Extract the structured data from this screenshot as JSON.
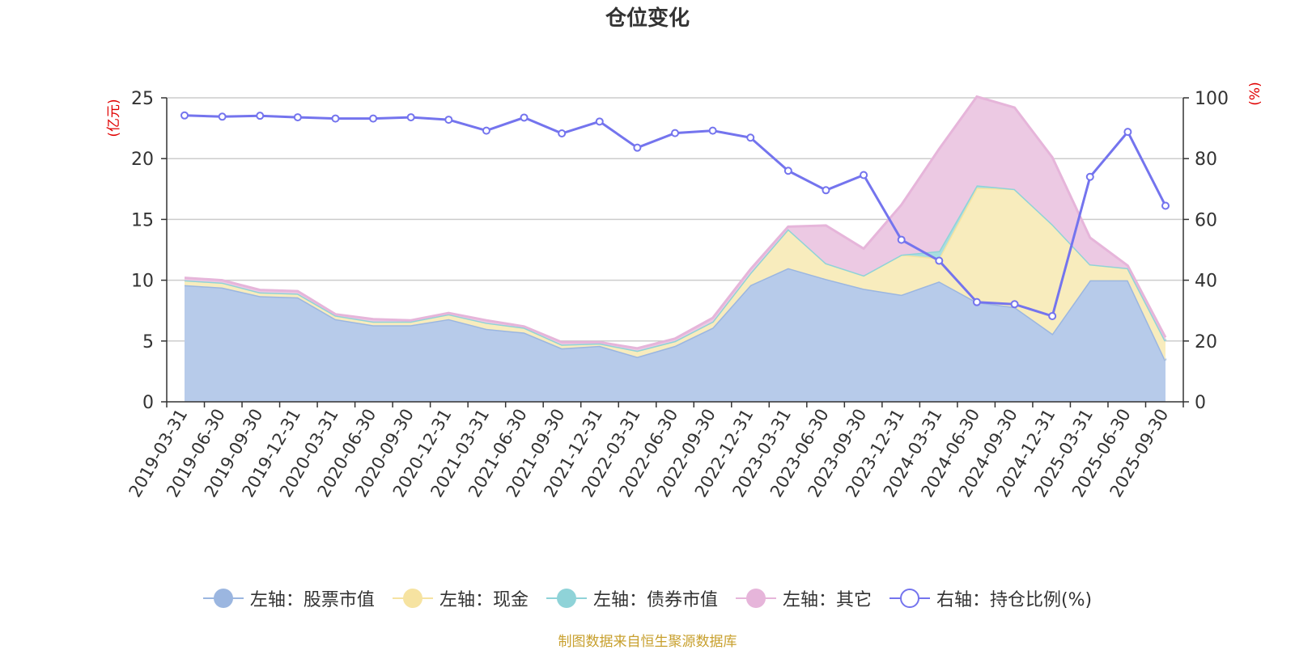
{
  "chart_data": {
    "type": "area",
    "title": "仓位变化",
    "left_axis_unit": "(亿元)",
    "right_axis_unit": "(%)",
    "categories": [
      "2019-03-31",
      "2019-06-30",
      "2019-09-30",
      "2019-12-31",
      "2020-03-31",
      "2020-06-30",
      "2020-09-30",
      "2020-12-31",
      "2021-03-31",
      "2021-06-30",
      "2021-09-30",
      "2021-12-31",
      "2022-03-31",
      "2022-06-30",
      "2022-09-30",
      "2022-12-31",
      "2023-03-31",
      "2023-06-30",
      "2023-09-30",
      "2023-12-31",
      "2024-03-31",
      "2024-06-30",
      "2024-09-30",
      "2024-12-31",
      "2025-03-31",
      "2025-06-30",
      "2025-09-30"
    ],
    "ylim_left": [
      0,
      25
    ],
    "yticks_left": [
      0,
      5,
      10,
      15,
      20,
      25
    ],
    "ylim_right": [
      0,
      100
    ],
    "yticks_right": [
      0,
      20,
      40,
      60,
      80,
      100
    ],
    "grid": true,
    "legend_position": "bottom",
    "series": [
      {
        "name": "左轴：股票市值",
        "axis": "left",
        "kind": "stacked-area",
        "color": "#9bb6e0",
        "fill": "#b7cbea",
        "values": [
          9.6,
          9.4,
          8.7,
          8.6,
          6.8,
          6.3,
          6.3,
          6.8,
          6.0,
          5.7,
          4.4,
          4.6,
          3.7,
          4.6,
          6.1,
          9.6,
          11.0,
          10.1,
          9.3,
          8.8,
          9.9,
          8.2,
          7.8,
          5.6,
          10.0,
          10.0,
          3.4
        ]
      },
      {
        "name": "左轴：现金",
        "axis": "left",
        "kind": "stacked-area",
        "color": "#f6e3a1",
        "fill": "#f8ecbd",
        "values": [
          0.4,
          0.4,
          0.3,
          0.3,
          0.3,
          0.3,
          0.3,
          0.4,
          0.5,
          0.4,
          0.3,
          0.2,
          0.5,
          0.4,
          0.5,
          1.0,
          3.2,
          1.3,
          1.1,
          3.3,
          1.9,
          9.4,
          9.7,
          9.0,
          1.3,
          1.0,
          1.6
        ]
      },
      {
        "name": "左轴：债券市值",
        "axis": "left",
        "kind": "stacked-area",
        "color": "#8fd3d8",
        "fill": "#a8dde0",
        "values": [
          0,
          0,
          0,
          0,
          0,
          0,
          0,
          0,
          0,
          0,
          0,
          0,
          0,
          0,
          0,
          0,
          0,
          0,
          0,
          0,
          0.6,
          0.2,
          0,
          0,
          0,
          0,
          0
        ]
      },
      {
        "name": "左轴：其它",
        "axis": "left",
        "kind": "stacked-area",
        "color": "#e6b5da",
        "fill": "#ecc9e3",
        "values": [
          0.2,
          0.2,
          0.2,
          0.2,
          0.1,
          0.2,
          0.1,
          0.1,
          0.2,
          0.1,
          0.2,
          0.1,
          0.2,
          0.2,
          0.3,
          0.3,
          0.2,
          3.1,
          2.2,
          4.1,
          8.4,
          7.3,
          6.7,
          5.5,
          2.2,
          0.2,
          0.3
        ]
      },
      {
        "name": "右轴：持仓比例(%)",
        "axis": "right",
        "kind": "line",
        "color": "#7474ee",
        "values": [
          94.2,
          93.8,
          94.1,
          93.6,
          93.2,
          93.2,
          93.6,
          92.8,
          89.2,
          93.5,
          88.3,
          92.2,
          83.6,
          88.4,
          89.2,
          86.9,
          76.0,
          69.6,
          74.6,
          53.3,
          46.4,
          32.8,
          32.1,
          28.2,
          74.0,
          88.8,
          64.5
        ]
      }
    ]
  },
  "source_note": "制图数据来自恒生聚源数据库"
}
